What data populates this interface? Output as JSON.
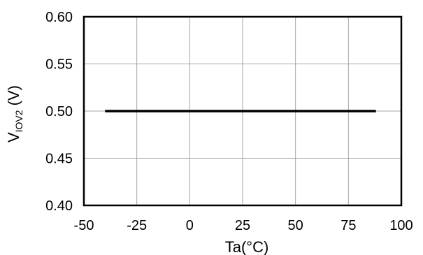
{
  "chart_data": {
    "type": "line",
    "xlabel": "Ta(°C)",
    "ylabel_main": "V",
    "ylabel_sub": "IOV2",
    "ylabel_unit": " (V)",
    "xlim": [
      -50,
      100
    ],
    "ylim": [
      0.4,
      0.6
    ],
    "x_ticks": [
      -50,
      -25,
      0,
      25,
      50,
      75,
      100
    ],
    "x_tick_labels": [
      "-50",
      "-25",
      "0",
      "25",
      "50",
      "75",
      "100"
    ],
    "y_ticks": [
      0.4,
      0.45,
      0.5,
      0.55,
      0.6
    ],
    "y_tick_labels": [
      "0.40",
      "0.45",
      "0.50",
      "0.55",
      "0.60"
    ],
    "grid": true,
    "series": [
      {
        "x": [
          -40,
          -25,
          0,
          25,
          50,
          75,
          88
        ],
        "y": [
          0.5,
          0.5,
          0.5,
          0.5,
          0.5,
          0.5,
          0.5
        ]
      }
    ],
    "line_color": "#000000",
    "grid_color": "#a6a6a6"
  }
}
